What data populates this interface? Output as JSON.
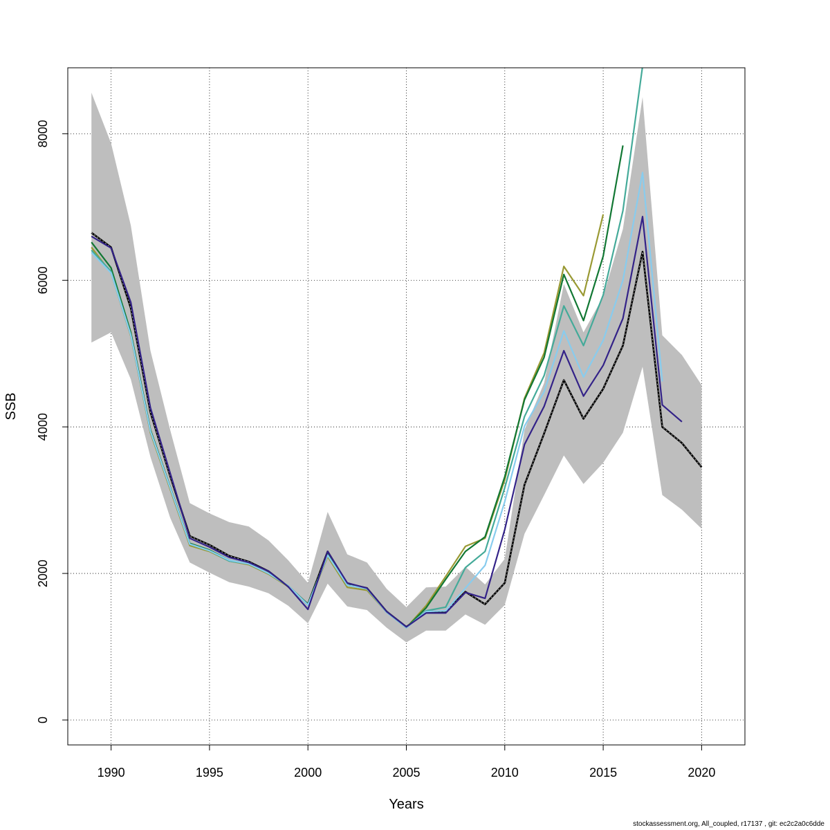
{
  "footer_text": "stockassessment.org, All_coupled, r17137 , git: ec2c2a0c6dde",
  "chart_data": {
    "type": "line",
    "xlabel": "Years",
    "ylabel": "SSB",
    "xlim": [
      1987.8,
      2022.2
    ],
    "ylim": [
      -340,
      8900
    ],
    "x_ticks": [
      1990,
      1995,
      2000,
      2005,
      2010,
      2015,
      2020
    ],
    "y_ticks": [
      0,
      2000,
      4000,
      6000,
      8000
    ],
    "grid": true,
    "legend": "none",
    "confidence_band": {
      "color": "#bebebe",
      "x": [
        1989,
        1990,
        1991,
        1992,
        1993,
        1994,
        1995,
        1996,
        1997,
        1998,
        1999,
        2000,
        2001,
        2002,
        2003,
        2004,
        2005,
        2006,
        2007,
        2008,
        2009,
        2010,
        2011,
        2012,
        2013,
        2014,
        2015,
        2016,
        2017,
        2018,
        2019,
        2020
      ],
      "upper": [
        8560,
        7870,
        6750,
        5040,
        3960,
        2960,
        2820,
        2700,
        2640,
        2450,
        2180,
        1870,
        2840,
        2260,
        2150,
        1790,
        1540,
        1810,
        1820,
        2090,
        1850,
        2200,
        3960,
        4600,
        5950,
        5290,
        5780,
        6700,
        8500,
        5250,
        4980,
        4570
      ],
      "lower": [
        5150,
        5290,
        4650,
        3590,
        2760,
        2150,
        2010,
        1880,
        1820,
        1730,
        1560,
        1320,
        1860,
        1550,
        1500,
        1260,
        1060,
        1220,
        1220,
        1440,
        1300,
        1570,
        2540,
        3070,
        3610,
        3220,
        3510,
        3920,
        4820,
        3070,
        2870,
        2610
      ]
    },
    "series": [
      {
        "color": "#000000",
        "dashed": true,
        "x": [
          1989,
          1990,
          1991,
          1992,
          1993,
          1994,
          1995,
          1996,
          1997,
          1998,
          1999,
          2000,
          2001,
          2002,
          2003,
          2004,
          2005,
          2006,
          2007,
          2008,
          2009,
          2010,
          2011,
          2012,
          2013,
          2014,
          2015,
          2016,
          2017,
          2018,
          2019,
          2020
        ],
        "values": [
          6650,
          6450,
          5620,
          4200,
          3330,
          2510,
          2390,
          2240,
          2160,
          2030,
          1820,
          1580,
          2300,
          1860,
          1800,
          1480,
          1270,
          1480,
          1480,
          1750,
          1580,
          1870,
          3210,
          3910,
          4640,
          4110,
          4520,
          5110,
          6390,
          4000,
          3780,
          3450
        ]
      },
      {
        "color": "#999933",
        "dashed": false,
        "x": [
          1989,
          1990,
          1991,
          1992,
          1993,
          1994,
          1995,
          1996,
          1997,
          1998,
          1999,
          2000,
          2001,
          2002,
          2003,
          2004,
          2005,
          2006,
          2007,
          2008,
          2009,
          2010,
          2011,
          2012,
          2013,
          2014,
          2015
        ],
        "values": [
          6450,
          6100,
          5240,
          3920,
          3150,
          2380,
          2300,
          2170,
          2120,
          1990,
          1820,
          1570,
          2230,
          1810,
          1770,
          1470,
          1260,
          1560,
          1960,
          2370,
          2480,
          3280,
          4390,
          5010,
          6190,
          5790,
          6900
        ]
      },
      {
        "color": "#117733",
        "dashed": false,
        "x": [
          1989,
          1990,
          1991,
          1992,
          1993,
          1994,
          1995,
          1996,
          1997,
          1998,
          1999,
          2000,
          2001,
          2002,
          2003,
          2004,
          2005,
          2006,
          2007,
          2008,
          2009,
          2010,
          2011,
          2012,
          2013,
          2014,
          2015,
          2016
        ],
        "values": [
          6520,
          6170,
          5290,
          3960,
          3180,
          2410,
          2320,
          2180,
          2130,
          2000,
          1830,
          1580,
          2260,
          1840,
          1790,
          1480,
          1260,
          1530,
          1920,
          2300,
          2500,
          3320,
          4370,
          4950,
          6080,
          5450,
          6330,
          7840
        ]
      },
      {
        "color": "#44AA99",
        "dashed": false,
        "x": [
          1989,
          1990,
          1991,
          1992,
          1993,
          1994,
          1995,
          1996,
          1997,
          1998,
          1999,
          2000,
          2001,
          2002,
          2003,
          2004,
          2005,
          2006,
          2007,
          2008,
          2009,
          2010,
          2011,
          2012,
          2013,
          2014,
          2015,
          2016,
          2017
        ],
        "values": [
          6410,
          6120,
          5260,
          3940,
          3170,
          2400,
          2310,
          2170,
          2130,
          2000,
          1830,
          1570,
          2250,
          1840,
          1790,
          1470,
          1260,
          1490,
          1540,
          2080,
          2300,
          3170,
          4140,
          4700,
          5650,
          5110,
          5800,
          6950,
          8920
        ]
      },
      {
        "color": "#88CCEE",
        "dashed": false,
        "x": [
          1989,
          1990,
          1991,
          1992,
          1993,
          1994,
          1995,
          1996,
          1997,
          1998,
          1999,
          2000,
          2001,
          2002,
          2003,
          2004,
          2005,
          2006,
          2007,
          2008,
          2009,
          2010,
          2011,
          2012,
          2013,
          2014,
          2015,
          2016,
          2017,
          2018
        ],
        "values": [
          6380,
          6100,
          5250,
          3940,
          3170,
          2400,
          2310,
          2180,
          2130,
          2000,
          1830,
          1570,
          2250,
          1840,
          1790,
          1470,
          1260,
          1480,
          1490,
          1800,
          2110,
          2980,
          4010,
          4480,
          5310,
          4680,
          5180,
          6000,
          7470,
          4620
        ]
      },
      {
        "color": "#332288",
        "dashed": false,
        "x": [
          1989,
          1990,
          1991,
          1992,
          1993,
          1994,
          1995,
          1996,
          1997,
          1998,
          1999,
          2000,
          2001,
          2002,
          2003,
          2004,
          2005,
          2006,
          2007,
          2008,
          2009,
          2010,
          2011,
          2012,
          2013,
          2014,
          2015,
          2016,
          2017,
          2018,
          2019
        ],
        "values": [
          6600,
          6440,
          5700,
          4260,
          3370,
          2480,
          2360,
          2220,
          2150,
          2030,
          1820,
          1510,
          2300,
          1870,
          1800,
          1480,
          1270,
          1460,
          1460,
          1740,
          1660,
          2600,
          3760,
          4280,
          5040,
          4420,
          4840,
          5480,
          6870,
          4300,
          4070
        ]
      }
    ]
  }
}
